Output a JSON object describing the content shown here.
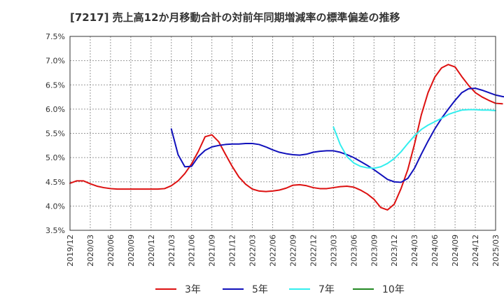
{
  "chart_data": {
    "type": "line",
    "title": "[7217]  売上高12か月移動合計の対前年同期増減率の標準偏差の推移",
    "x_labels": [
      "2019/12",
      "2020/03",
      "2020/06",
      "2020/09",
      "2020/12",
      "2021/03",
      "2021/06",
      "2021/09",
      "2021/12",
      "2022/03",
      "2022/06",
      "2022/09",
      "2022/12",
      "2023/03",
      "2023/06",
      "2023/09",
      "2023/12",
      "2024/03",
      "2024/06",
      "2024/09",
      "2024/12",
      "2025/03"
    ],
    "y_labels": [
      "7.5%",
      "7.0%",
      "6.5%",
      "6.0%",
      "5.5%",
      "5.0%",
      "4.5%",
      "4.0%",
      "3.5%"
    ],
    "ylim": [
      3.5,
      7.5
    ],
    "xlim": [
      0,
      63
    ],
    "grid": true,
    "series": [
      {
        "name": "3年",
        "color": "#dd1111",
        "start_index": 0,
        "values": [
          4.47,
          4.52,
          4.52,
          4.46,
          4.41,
          4.38,
          4.36,
          4.35,
          4.35,
          4.35,
          4.35,
          4.35,
          4.35,
          4.35,
          4.36,
          4.42,
          4.52,
          4.67,
          4.87,
          5.13,
          5.43,
          5.47,
          5.33,
          5.07,
          4.82,
          4.6,
          4.45,
          4.35,
          4.31,
          4.3,
          4.31,
          4.33,
          4.37,
          4.43,
          4.44,
          4.42,
          4.38,
          4.36,
          4.36,
          4.38,
          4.4,
          4.41,
          4.39,
          4.33,
          4.25,
          4.14,
          3.97,
          3.92,
          4.04,
          4.36,
          4.75,
          5.28,
          5.88,
          6.34,
          6.66,
          6.85,
          6.92,
          6.87,
          6.67,
          6.49,
          6.34,
          6.25,
          6.18,
          6.12,
          6.11
        ]
      },
      {
        "name": "5年",
        "color": "#1111bb",
        "start_index": 15,
        "values": [
          5.59,
          5.06,
          4.81,
          4.82,
          5.02,
          5.15,
          5.22,
          5.25,
          5.27,
          5.28,
          5.28,
          5.29,
          5.29,
          5.27,
          5.22,
          5.16,
          5.11,
          5.08,
          5.06,
          5.05,
          5.07,
          5.11,
          5.13,
          5.14,
          5.14,
          5.11,
          5.06,
          5.0,
          4.92,
          4.84,
          4.75,
          4.65,
          4.55,
          4.5,
          4.49,
          4.57,
          4.78,
          5.07,
          5.34,
          5.59,
          5.81,
          6.0,
          6.18,
          6.34,
          6.42,
          6.43,
          6.39,
          6.34,
          6.29,
          6.26,
          6.24
        ]
      },
      {
        "name": "7年",
        "color": "#33eeee",
        "start_index": 39,
        "values": [
          5.63,
          5.27,
          5.02,
          4.89,
          4.82,
          4.79,
          4.78,
          4.81,
          4.88,
          4.98,
          5.12,
          5.29,
          5.45,
          5.58,
          5.67,
          5.74,
          5.81,
          5.89,
          5.94,
          5.98,
          5.99,
          5.99,
          5.98,
          5.98,
          5.97
        ]
      },
      {
        "name": "10年",
        "color": "#228822",
        "start_index": 0,
        "values": []
      }
    ]
  }
}
